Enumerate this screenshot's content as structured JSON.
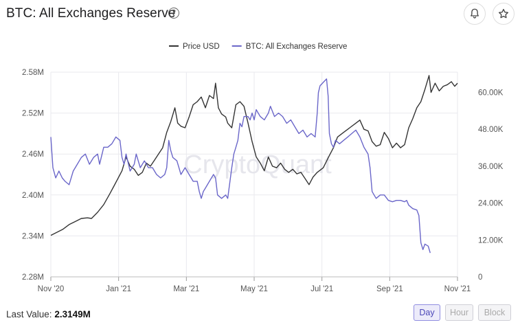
{
  "header": {
    "title": "BTC: All Exchanges Reserve",
    "help_icon": "?",
    "bell_icon": "bell-icon",
    "star_icon": "star-icon"
  },
  "watermark": "CryptoQuant",
  "footer": {
    "last_value_label": "Last Value:",
    "last_value": "2.3149M",
    "timeframes": [
      "Day",
      "Hour",
      "Block"
    ],
    "active_timeframe": "Day"
  },
  "chart_data": {
    "type": "line",
    "x_ticks": [
      "Nov '20",
      "Jan '21",
      "Mar '21",
      "May '21",
      "Jul '21",
      "Sep '21",
      "Nov '21"
    ],
    "left_axis": {
      "ticks": [
        "2.28M",
        "2.34M",
        "2.40M",
        "2.46M",
        "2.52M",
        "2.58M"
      ],
      "range": [
        2.28,
        2.58
      ]
    },
    "right_axis": {
      "ticks": [
        "0",
        "12.00K",
        "24.00K",
        "36.00K",
        "48.00K",
        "60.00K"
      ],
      "range": [
        0,
        66600
      ]
    },
    "legend": {
      "position": "top-center"
    },
    "grid": true,
    "series": [
      {
        "name": "Price USD",
        "axis": "right",
        "color": "#333333",
        "values": [
          [
            0,
            13500
          ],
          [
            0.15,
            14500
          ],
          [
            0.3,
            15500
          ],
          [
            0.45,
            17000
          ],
          [
            0.6,
            18000
          ],
          [
            0.75,
            19000
          ],
          [
            0.9,
            19200
          ],
          [
            1.0,
            19000
          ],
          [
            1.15,
            21000
          ],
          [
            1.3,
            23500
          ],
          [
            1.45,
            27000
          ],
          [
            1.55,
            29500
          ],
          [
            1.65,
            32000
          ],
          [
            1.75,
            34500
          ],
          [
            1.85,
            39000
          ],
          [
            1.95,
            36000
          ],
          [
            2.05,
            35000
          ],
          [
            2.15,
            33000
          ],
          [
            2.25,
            34000
          ],
          [
            2.35,
            37000
          ],
          [
            2.45,
            36000
          ],
          [
            2.55,
            38000
          ],
          [
            2.65,
            40000
          ],
          [
            2.75,
            42000
          ],
          [
            2.85,
            47000
          ],
          [
            2.95,
            50500
          ],
          [
            3.05,
            55000
          ],
          [
            3.12,
            50000
          ],
          [
            3.2,
            49000
          ],
          [
            3.3,
            48500
          ],
          [
            3.4,
            52000
          ],
          [
            3.5,
            56000
          ],
          [
            3.6,
            57000
          ],
          [
            3.7,
            58500
          ],
          [
            3.8,
            55000
          ],
          [
            3.9,
            59000
          ],
          [
            4.0,
            58000
          ],
          [
            4.05,
            63000
          ],
          [
            4.12,
            55000
          ],
          [
            4.2,
            53000
          ],
          [
            4.3,
            52000
          ],
          [
            4.35,
            50000
          ],
          [
            4.45,
            48500
          ],
          [
            4.55,
            56000
          ],
          [
            4.65,
            57000
          ],
          [
            4.75,
            55500
          ],
          [
            4.85,
            50000
          ],
          [
            4.95,
            44000
          ],
          [
            5.05,
            39000
          ],
          [
            5.15,
            37000
          ],
          [
            5.25,
            34500
          ],
          [
            5.35,
            39000
          ],
          [
            5.45,
            36000
          ],
          [
            5.55,
            35500
          ],
          [
            5.65,
            37000
          ],
          [
            5.75,
            35000
          ],
          [
            5.85,
            34000
          ],
          [
            5.95,
            35000
          ],
          [
            6.05,
            33500
          ],
          [
            6.15,
            34000
          ],
          [
            6.25,
            32000
          ],
          [
            6.35,
            30000
          ],
          [
            6.45,
            32500
          ],
          [
            6.55,
            34000
          ],
          [
            6.7,
            35500
          ],
          [
            6.85,
            39500
          ],
          [
            6.95,
            42000
          ],
          [
            7.05,
            45500
          ],
          [
            7.2,
            47000
          ],
          [
            7.35,
            48500
          ],
          [
            7.5,
            50000
          ],
          [
            7.6,
            51000
          ],
          [
            7.7,
            48000
          ],
          [
            7.8,
            47500
          ],
          [
            7.9,
            44000
          ],
          [
            8.0,
            42500
          ],
          [
            8.1,
            43000
          ],
          [
            8.2,
            47000
          ],
          [
            8.3,
            45000
          ],
          [
            8.4,
            42000
          ],
          [
            8.5,
            43500
          ],
          [
            8.6,
            42000
          ],
          [
            8.7,
            43000
          ],
          [
            8.8,
            48500
          ],
          [
            8.9,
            51500
          ],
          [
            9.0,
            55000
          ],
          [
            9.1,
            57000
          ],
          [
            9.2,
            61000
          ],
          [
            9.3,
            65500
          ],
          [
            9.35,
            60000
          ],
          [
            9.45,
            63000
          ],
          [
            9.55,
            60500
          ],
          [
            9.65,
            62000
          ],
          [
            9.75,
            62500
          ],
          [
            9.85,
            63500
          ],
          [
            9.93,
            62000
          ],
          [
            10.0,
            63000
          ]
        ]
      },
      {
        "name": "BTC: All Exchanges Reserve",
        "axis": "left",
        "color": "#6a66c9",
        "values": [
          [
            0,
            2.485
          ],
          [
            0.05,
            2.44
          ],
          [
            0.12,
            2.425
          ],
          [
            0.2,
            2.435
          ],
          [
            0.28,
            2.425
          ],
          [
            0.35,
            2.42
          ],
          [
            0.45,
            2.415
          ],
          [
            0.55,
            2.435
          ],
          [
            0.65,
            2.445
          ],
          [
            0.75,
            2.455
          ],
          [
            0.85,
            2.46
          ],
          [
            0.95,
            2.445
          ],
          [
            1.05,
            2.455
          ],
          [
            1.15,
            2.46
          ],
          [
            1.2,
            2.445
          ],
          [
            1.3,
            2.47
          ],
          [
            1.4,
            2.47
          ],
          [
            1.5,
            2.475
          ],
          [
            1.6,
            2.485
          ],
          [
            1.7,
            2.48
          ],
          [
            1.75,
            2.455
          ],
          [
            1.8,
            2.445
          ],
          [
            1.85,
            2.46
          ],
          [
            1.95,
            2.435
          ],
          [
            2.05,
            2.445
          ],
          [
            2.1,
            2.46
          ],
          [
            2.2,
            2.44
          ],
          [
            2.3,
            2.45
          ],
          [
            2.4,
            2.44
          ],
          [
            2.5,
            2.44
          ],
          [
            2.6,
            2.43
          ],
          [
            2.7,
            2.425
          ],
          [
            2.8,
            2.43
          ],
          [
            2.85,
            2.44
          ],
          [
            2.9,
            2.48
          ],
          [
            2.95,
            2.465
          ],
          [
            3.0,
            2.455
          ],
          [
            3.1,
            2.45
          ],
          [
            3.15,
            2.44
          ],
          [
            3.2,
            2.43
          ],
          [
            3.3,
            2.44
          ],
          [
            3.4,
            2.43
          ],
          [
            3.5,
            2.42
          ],
          [
            3.6,
            2.42
          ],
          [
            3.65,
            2.405
          ],
          [
            3.7,
            2.395
          ],
          [
            3.75,
            2.405
          ],
          [
            3.8,
            2.41
          ],
          [
            3.9,
            2.42
          ],
          [
            4.0,
            2.43
          ],
          [
            4.05,
            2.425
          ],
          [
            4.1,
            2.4
          ],
          [
            4.2,
            2.395
          ],
          [
            4.3,
            2.4
          ],
          [
            4.35,
            2.395
          ],
          [
            4.45,
            2.44
          ],
          [
            4.5,
            2.46
          ],
          [
            4.55,
            2.47
          ],
          [
            4.6,
            2.48
          ],
          [
            4.65,
            2.505
          ],
          [
            4.7,
            2.5
          ],
          [
            4.75,
            2.515
          ],
          [
            4.85,
            2.515
          ],
          [
            4.9,
            2.51
          ],
          [
            4.95,
            2.52
          ],
          [
            5.0,
            2.51
          ],
          [
            5.05,
            2.525
          ],
          [
            5.1,
            2.52
          ],
          [
            5.15,
            2.515
          ],
          [
            5.25,
            2.51
          ],
          [
            5.35,
            2.52
          ],
          [
            5.4,
            2.53
          ],
          [
            5.5,
            2.515
          ],
          [
            5.6,
            2.52
          ],
          [
            5.7,
            2.515
          ],
          [
            5.8,
            2.505
          ],
          [
            5.9,
            2.51
          ],
          [
            6.0,
            2.5
          ],
          [
            6.1,
            2.49
          ],
          [
            6.2,
            2.495
          ],
          [
            6.3,
            2.485
          ],
          [
            6.4,
            2.49
          ],
          [
            6.5,
            2.485
          ],
          [
            6.55,
            2.52
          ],
          [
            6.58,
            2.55
          ],
          [
            6.62,
            2.56
          ],
          [
            6.7,
            2.565
          ],
          [
            6.78,
            2.57
          ],
          [
            6.82,
            2.545
          ],
          [
            6.85,
            2.49
          ],
          [
            6.9,
            2.475
          ],
          [
            6.95,
            2.47
          ],
          [
            7.0,
            2.48
          ],
          [
            7.1,
            2.475
          ],
          [
            7.2,
            2.48
          ],
          [
            7.3,
            2.485
          ],
          [
            7.4,
            2.49
          ],
          [
            7.5,
            2.495
          ],
          [
            7.6,
            2.485
          ],
          [
            7.7,
            2.47
          ],
          [
            7.8,
            2.46
          ],
          [
            7.85,
            2.44
          ],
          [
            7.9,
            2.405
          ],
          [
            7.95,
            2.4
          ],
          [
            8.0,
            2.395
          ],
          [
            8.1,
            2.4
          ],
          [
            8.2,
            2.4
          ],
          [
            8.3,
            2.392
          ],
          [
            8.4,
            2.39
          ],
          [
            8.5,
            2.392
          ],
          [
            8.6,
            2.392
          ],
          [
            8.7,
            2.39
          ],
          [
            8.75,
            2.392
          ],
          [
            8.8,
            2.385
          ],
          [
            8.9,
            2.38
          ],
          [
            9.0,
            2.378
          ],
          [
            9.05,
            2.37
          ],
          [
            9.1,
            2.33
          ],
          [
            9.15,
            2.32
          ],
          [
            9.2,
            2.328
          ],
          [
            9.28,
            2.325
          ],
          [
            9.33,
            2.315
          ]
        ]
      }
    ]
  }
}
